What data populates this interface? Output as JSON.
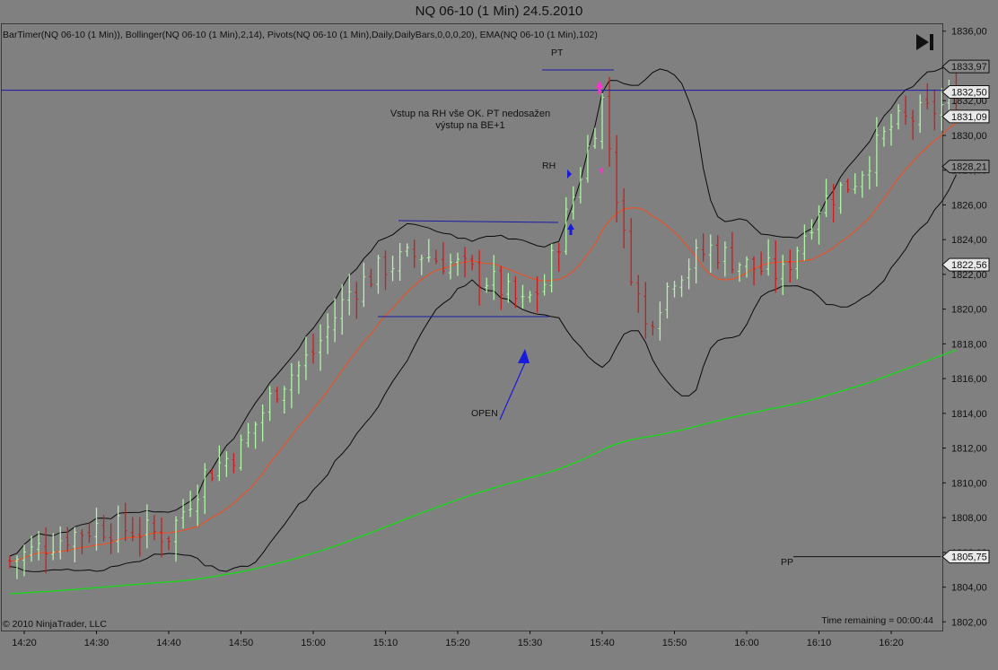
{
  "chart_data": {
    "type": "candlestick",
    "title": "NQ 06-10 (1 Min)  24.5.2010",
    "indicators_label": "BarTimer(NQ 06-10 (1 Min)), Bollinger(NQ 06-10 (1 Min),2,14), Pivots(NQ 06-10 (1 Min),Daily,DailyBars,0,0,0,20), EMA(NQ 06-10 (1 Min),102)",
    "copyright": "© 2010 NinjaTrader, LLC",
    "time_remaining": "Time remaining = 00:00:44",
    "ylim": [
      1801.5,
      1836.4
    ],
    "y_ticks": [
      1802,
      1804,
      1806,
      1808,
      1810,
      1812,
      1814,
      1816,
      1818,
      1820,
      1822,
      1824,
      1826,
      1828,
      1830,
      1832,
      1834,
      1836
    ],
    "y_tick_labels": [
      "1802,00",
      "1804,00",
      "1806,00",
      "1808,00",
      "1810,00",
      "1812,00",
      "1814,00",
      "1816,00",
      "1818,00",
      "1820,00",
      "1822,00",
      "1824,00",
      "1826,00",
      "1828,00",
      "1830,00",
      "1832,00",
      "1834,00",
      "1836,00"
    ],
    "x_tick_labels": [
      "14:20",
      "14:30",
      "14:40",
      "14:50",
      "15:00",
      "15:10",
      "15:20",
      "15:30",
      "15:40",
      "15:50",
      "16:00",
      "16:10",
      "16:20"
    ],
    "price_markers": [
      {
        "label": "1833,97",
        "value": 1833.97,
        "style": "dark"
      },
      {
        "label": "1832,50",
        "value": 1832.5,
        "style": "light"
      },
      {
        "label": "1831,09",
        "value": 1831.09,
        "style": "light"
      },
      {
        "label": "1828,21",
        "value": 1828.21,
        "style": "dark"
      },
      {
        "label": "1822,56",
        "value": 1822.56,
        "style": "light"
      },
      {
        "label": "1805,75",
        "value": 1805.75,
        "style": "light"
      }
    ],
    "horizontal_lines": [
      {
        "name": "blue-level",
        "value": 1832.6,
        "color": "#1a1aa8"
      }
    ],
    "pivot": {
      "label": "PP",
      "value": 1805.75
    },
    "annotations": [
      {
        "text": "Vstup na RH vše OK. PT nedosažen",
        "line": 1
      },
      {
        "text": "výstup na BE+1",
        "line": 2
      }
    ],
    "labels": {
      "pt": "PT",
      "rh": "RH",
      "open": "OPEN"
    },
    "colors": {
      "background": "#808080",
      "up_bar": "#aef5a6",
      "down_bar": "#c81e1e",
      "ema": "#22d022",
      "bollinger_mid": "#e5522a",
      "bollinger_bands": "#0a0a0a",
      "annotation_lines": "#1a1aa8",
      "exit_marker": "#ff33cc"
    }
  }
}
